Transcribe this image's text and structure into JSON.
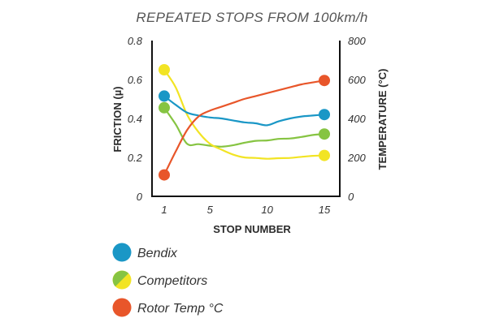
{
  "colors": {
    "bendix": "#1a97c6",
    "competitors_green": "#86c442",
    "competitors_yellow": "#f2e424",
    "rotor": "#e8562a",
    "axis": "#111111"
  },
  "chart_data": {
    "type": "line",
    "title": "REPEATED STOPS FROM 100km/h",
    "xlabel": "STOP NUMBER",
    "ylabel_left": "FRICTION (µ)",
    "ylabel_right": "TEMPERATURE (°C)",
    "xlim": [
      1,
      15
    ],
    "ylim_left": [
      0,
      0.8
    ],
    "ylim_right": [
      0,
      800
    ],
    "x_ticks": [
      1,
      5,
      10,
      15
    ],
    "y_left_ticks": [
      "0",
      "0.2",
      "0.4",
      "0.6",
      "0.8"
    ],
    "y_right_ticks": [
      "0",
      "200",
      "400",
      "600",
      "800"
    ],
    "x_tick_labels": [
      "1",
      "5",
      "10",
      "15"
    ],
    "grid": false,
    "legend_position": "bottom-left",
    "series": [
      {
        "key": "bendix",
        "name": "Bendix",
        "axis": "left",
        "marker_color": "bendix",
        "x": [
          1,
          2,
          3,
          4,
          5,
          6,
          7,
          8,
          9,
          10,
          11,
          12,
          13,
          14,
          15
        ],
        "y": [
          0.515,
          0.47,
          0.43,
          0.415,
          0.405,
          0.4,
          0.39,
          0.38,
          0.375,
          0.365,
          0.385,
          0.4,
          0.41,
          0.415,
          0.42
        ],
        "endpoints": [
          1,
          15
        ]
      },
      {
        "key": "competitors_green",
        "name": "Competitors",
        "axis": "left",
        "x": [
          1,
          2,
          3,
          4,
          5,
          6,
          7,
          8,
          9,
          10,
          11,
          12,
          13,
          14,
          15
        ],
        "y": [
          0.455,
          0.37,
          0.27,
          0.268,
          0.26,
          0.255,
          0.262,
          0.275,
          0.285,
          0.287,
          0.295,
          0.297,
          0.305,
          0.315,
          0.32
        ],
        "endpoints": [
          1,
          15
        ]
      },
      {
        "key": "competitors_yellow",
        "name": "Competitors",
        "axis": "left",
        "x": [
          1,
          2,
          3,
          4,
          5,
          6,
          7,
          8,
          9,
          10,
          11,
          12,
          13,
          14,
          15
        ],
        "y": [
          0.65,
          0.56,
          0.42,
          0.33,
          0.27,
          0.24,
          0.215,
          0.2,
          0.197,
          0.193,
          0.196,
          0.197,
          0.203,
          0.208,
          0.21
        ],
        "endpoints": [
          1,
          15
        ]
      },
      {
        "key": "rotor",
        "name": "Rotor Temp °C",
        "axis": "right",
        "x": [
          1,
          2,
          3,
          4,
          5,
          6,
          7,
          8,
          9,
          10,
          11,
          12,
          13,
          14,
          15
        ],
        "y": [
          110,
          230,
          340,
          410,
          440,
          460,
          480,
          500,
          515,
          530,
          545,
          560,
          575,
          585,
          595
        ],
        "endpoints": [
          1,
          15
        ]
      }
    ],
    "legend": [
      {
        "label": "Bendix",
        "swatch": "bendix"
      },
      {
        "label": "Competitors",
        "swatch": "competitors"
      },
      {
        "label": "Rotor Temp °C",
        "swatch": "rotor"
      }
    ]
  }
}
